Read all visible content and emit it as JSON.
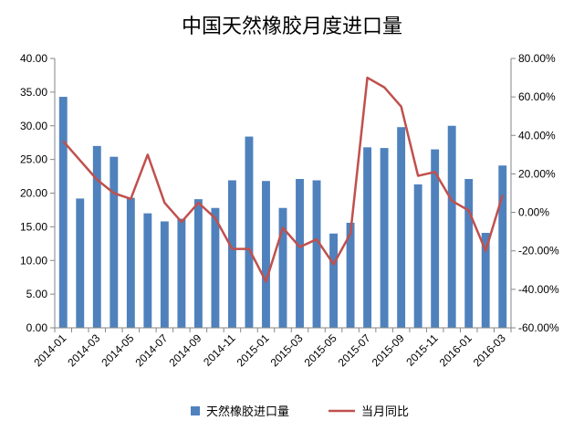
{
  "chart_data": {
    "type": "bar",
    "title": "中国天然橡胶月度进口量",
    "categories": [
      "2014-01",
      "2014-02",
      "2014-03",
      "2014-04",
      "2014-05",
      "2014-06",
      "2014-07",
      "2014-08",
      "2014-09",
      "2014-10",
      "2014-11",
      "2014-12",
      "2015-01",
      "2015-02",
      "2015-03",
      "2015-04",
      "2015-05",
      "2015-06",
      "2015-07",
      "2015-08",
      "2015-09",
      "2015-10",
      "2015-11",
      "2015-12",
      "2016-01",
      "2016-02",
      "2016-03"
    ],
    "x_tick_labels": [
      "2014-01",
      "2014-03",
      "2014-05",
      "2014-07",
      "2014-09",
      "2014-11",
      "2015-01",
      "2015-03",
      "2015-05",
      "2015-07",
      "2015-09",
      "2015-11",
      "2016-01",
      "2016-03"
    ],
    "series": [
      {
        "name": "天然橡胶进口量",
        "type": "bar",
        "axis": "left",
        "color": "#4F81BD",
        "values": [
          34.3,
          19.2,
          27.0,
          25.4,
          19.3,
          17.0,
          15.8,
          16.2,
          19.1,
          17.8,
          21.9,
          28.4,
          21.8,
          17.8,
          22.1,
          21.9,
          14.0,
          15.6,
          26.8,
          26.7,
          29.8,
          21.3,
          26.5,
          30.0,
          22.1,
          14.1,
          24.1
        ]
      },
      {
        "name": "当月同比",
        "type": "line",
        "axis": "right",
        "color": "#C0504D",
        "values": [
          0.37,
          0.27,
          0.17,
          0.1,
          0.07,
          0.3,
          0.05,
          -0.05,
          0.05,
          -0.03,
          -0.19,
          -0.19,
          -0.36,
          -0.08,
          -0.18,
          -0.14,
          -0.27,
          -0.11,
          0.7,
          0.65,
          0.55,
          0.19,
          0.21,
          0.06,
          0.01,
          -0.2,
          0.09
        ]
      }
    ],
    "y_left": {
      "min": 0,
      "max": 40,
      "step": 5,
      "tick_labels": [
        "0.00",
        "5.00",
        "10.00",
        "15.00",
        "20.00",
        "25.00",
        "30.00",
        "35.00",
        "40.00"
      ]
    },
    "y_right": {
      "min": -0.6,
      "max": 0.8,
      "step": 0.2,
      "tick_labels": [
        "-60.00%",
        "-40.00%",
        "-20.00%",
        "0.00%",
        "20.00%",
        "40.00%",
        "60.00%",
        "80.00%"
      ]
    },
    "legend": {
      "position": "bottom",
      "entries": [
        "天然橡胶进口量",
        "当月同比"
      ]
    },
    "grid": false
  }
}
